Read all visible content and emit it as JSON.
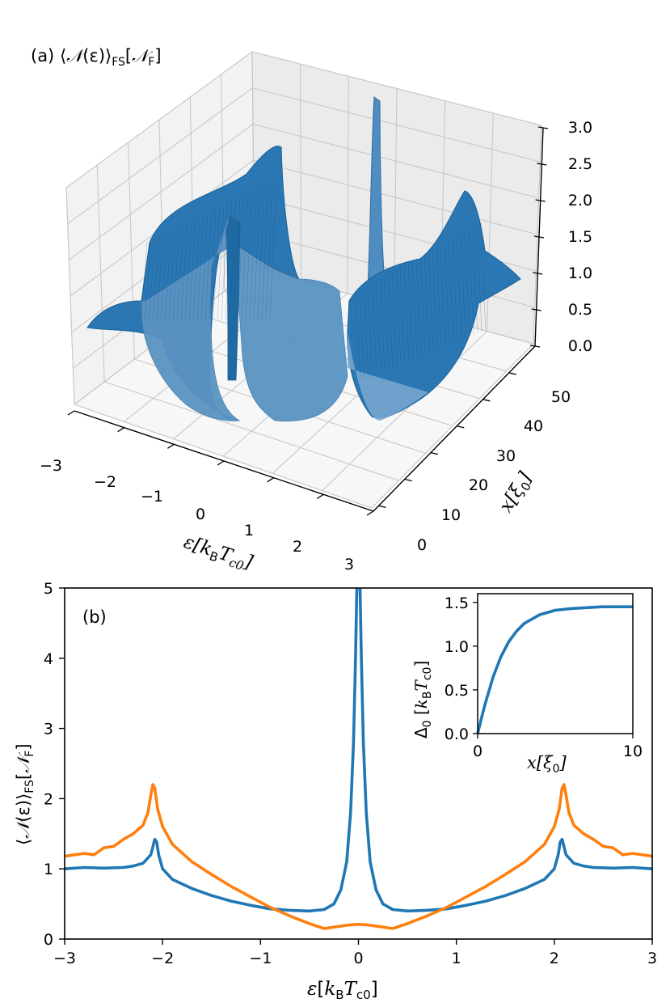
{
  "chart_data": [
    {
      "type": "surface3d",
      "panel_label": "(a)",
      "title": {
        "pre": "⟨",
        "sym": "𝒩",
        "mid": "(ε)⟩",
        "sub": "FS",
        "unit_open": "[",
        "unit_sym": "𝒩",
        "unit_sub": "F",
        "unit_close": "]"
      },
      "xlabel": {
        "sym": "ε",
        "open": "[",
        "k": "k",
        "ksub": "B",
        "T": "T",
        "tsub": "c0",
        "close": "]"
      },
      "ylabel": {
        "sym": "x",
        "open": "[",
        "xi": "ξ",
        "xisub": "0",
        "close": "]"
      },
      "x_ticks": [
        "−3",
        "−2",
        "−1",
        "0",
        "1",
        "2",
        "3"
      ],
      "y_ticks": [
        "0",
        "10",
        "20",
        "30",
        "40",
        "50"
      ],
      "z_ticks": [
        "0.0",
        "0.5",
        "1.0",
        "1.5",
        "2.0",
        "2.5",
        "3.0"
      ],
      "xlim": [
        -3,
        3
      ],
      "ylim": [
        0,
        55
      ],
      "zlim": [
        0,
        3
      ],
      "grid": true,
      "color": "#1f77b4"
    },
    {
      "type": "line",
      "panel_label": "(b)",
      "xlim": [
        -3,
        3
      ],
      "ylim": [
        0,
        5
      ],
      "x_ticks": [
        "−3",
        "−2",
        "−1",
        "0",
        "1",
        "2",
        "3"
      ],
      "y_ticks": [
        "0",
        "1",
        "2",
        "3",
        "4",
        "5"
      ],
      "xlabel": {
        "sym": "ε",
        "open": "[",
        "k": "k",
        "ksub": "B",
        "T": "T",
        "tsub": "c0",
        "close": "]"
      },
      "ylabel": {
        "pre": "⟨",
        "sym": "𝒩",
        "mid": "(ε)⟩",
        "sub": "FS",
        "unit_open": "[",
        "unit_sym": "𝒩",
        "unit_sub": "F",
        "unit_close": "]"
      },
      "series": [
        {
          "color": "#1f77b4",
          "x": [
            -3.0,
            -2.8,
            -2.6,
            -2.4,
            -2.3,
            -2.2,
            -2.12,
            -2.08,
            -2.06,
            -2.04,
            -2.0,
            -1.9,
            -1.7,
            -1.5,
            -1.3,
            -1.1,
            -0.9,
            -0.7,
            -0.5,
            -0.35,
            -0.25,
            -0.18,
            -0.12,
            -0.08,
            -0.05,
            -0.03,
            -0.01,
            0.01,
            0.03,
            0.05,
            0.08,
            0.12,
            0.18,
            0.25,
            0.35,
            0.5,
            0.7,
            0.9,
            1.1,
            1.3,
            1.5,
            1.7,
            1.9,
            2.0,
            2.04,
            2.06,
            2.08,
            2.12,
            2.2,
            2.3,
            2.4,
            2.6,
            2.8,
            3.0
          ],
          "y": [
            1.0,
            1.02,
            1.01,
            1.02,
            1.04,
            1.08,
            1.2,
            1.42,
            1.38,
            1.2,
            1.0,
            0.85,
            0.72,
            0.62,
            0.54,
            0.48,
            0.43,
            0.41,
            0.4,
            0.42,
            0.5,
            0.7,
            1.1,
            1.8,
            2.8,
            4.0,
            5.5,
            5.5,
            4.0,
            2.8,
            1.8,
            1.1,
            0.7,
            0.5,
            0.42,
            0.4,
            0.41,
            0.43,
            0.48,
            0.54,
            0.62,
            0.72,
            0.85,
            1.0,
            1.2,
            1.38,
            1.42,
            1.2,
            1.08,
            1.04,
            1.02,
            1.01,
            1.02,
            1.0
          ]
        },
        {
          "color": "#ff7f0e",
          "x": [
            -3.0,
            -2.8,
            -2.7,
            -2.6,
            -2.5,
            -2.4,
            -2.3,
            -2.2,
            -2.15,
            -2.12,
            -2.1,
            -2.08,
            -2.05,
            -2.0,
            -1.9,
            -1.7,
            -1.5,
            -1.3,
            -1.1,
            -0.9,
            -0.7,
            -0.5,
            -0.35,
            -0.25,
            -0.1,
            0.0,
            0.1,
            0.25,
            0.35,
            0.5,
            0.7,
            0.9,
            1.1,
            1.3,
            1.5,
            1.7,
            1.9,
            2.0,
            2.05,
            2.08,
            2.1,
            2.12,
            2.15,
            2.2,
            2.3,
            2.4,
            2.5,
            2.6,
            2.7,
            2.8,
            3.0
          ],
          "y": [
            1.18,
            1.22,
            1.2,
            1.3,
            1.32,
            1.42,
            1.5,
            1.62,
            1.8,
            2.05,
            2.2,
            2.15,
            1.85,
            1.6,
            1.35,
            1.1,
            0.92,
            0.75,
            0.6,
            0.45,
            0.33,
            0.22,
            0.15,
            0.17,
            0.2,
            0.21,
            0.2,
            0.17,
            0.15,
            0.22,
            0.33,
            0.45,
            0.6,
            0.75,
            0.92,
            1.1,
            1.35,
            1.6,
            1.85,
            2.15,
            2.2,
            2.05,
            1.8,
            1.62,
            1.5,
            1.42,
            1.32,
            1.3,
            1.2,
            1.22,
            1.18
          ]
        }
      ],
      "inset": {
        "type": "line",
        "xlim": [
          0,
          10
        ],
        "ylim": [
          0,
          1.6
        ],
        "x_ticks": [
          "0",
          "10"
        ],
        "y_ticks": [
          "0.0",
          "0.5",
          "1.0",
          "1.5"
        ],
        "xlabel": {
          "sym": "x",
          "open": "[",
          "xi": "ξ",
          "xisub": "0",
          "close": "]"
        },
        "ylabel": {
          "sym": "Δ",
          "sub": "0",
          "open": "[",
          "k": "k",
          "ksub": "B",
          "T": "T",
          "tsub": "c0",
          "close": "]"
        },
        "series": [
          {
            "color": "#1f77b4",
            "x": [
              0,
              0.25,
              0.5,
              1,
              1.5,
              2,
              2.5,
              3,
              4,
              5,
              6,
              7,
              8,
              9,
              10
            ],
            "y": [
              0.0,
              0.18,
              0.35,
              0.65,
              0.88,
              1.05,
              1.17,
              1.26,
              1.36,
              1.41,
              1.43,
              1.44,
              1.45,
              1.45,
              1.45
            ]
          }
        ]
      }
    }
  ]
}
